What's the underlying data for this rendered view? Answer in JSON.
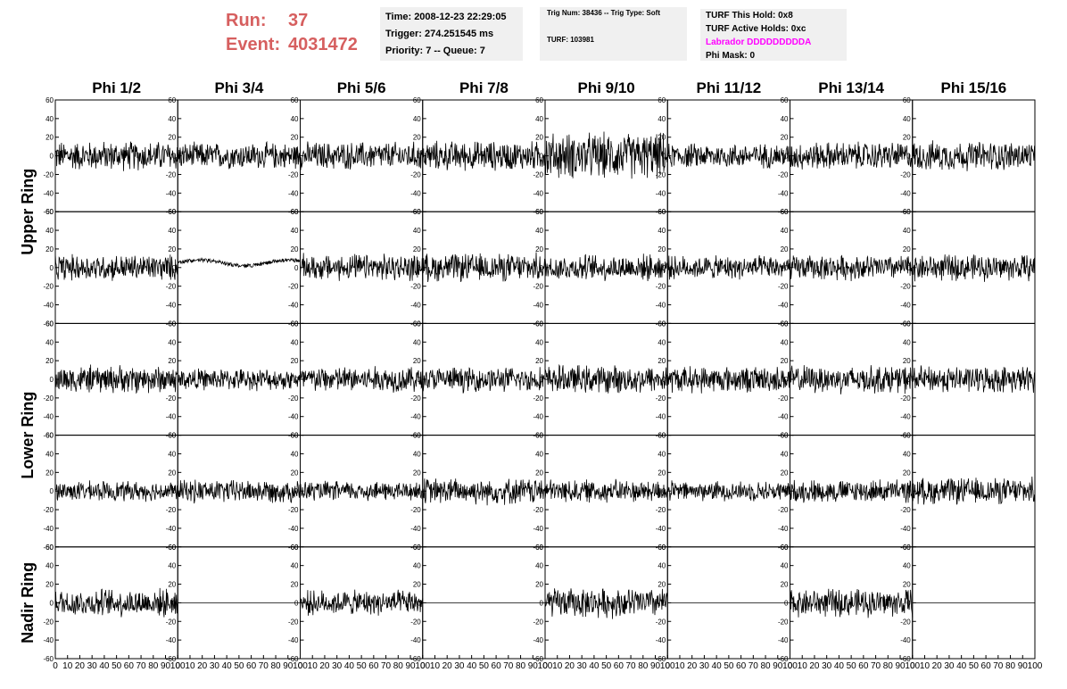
{
  "header": {
    "run_label": "Run:",
    "run_value": "37",
    "event_label": "Event:",
    "event_value": "4031472",
    "time": "Time: 2008-12-23 22:29:05",
    "trigger": "Trigger: 274.251545 ms",
    "priority": "Priority: 7 -- Queue: 7",
    "trig_num": "Trig Num: 38436 -- Trig Type: Soft",
    "turf": "TURF: 103981",
    "turf_hold": "TURF This Hold: 0x8",
    "turf_active": "TURF Active Holds: 0xc",
    "labrador": "Labrador DDDDDDDDDA",
    "phi_mask": "Phi Mask: 0"
  },
  "colors": {
    "run_text": "#d65f5f",
    "labrador": "#ff00ff",
    "info_box_bg": "#f0f0f0",
    "trace": "#000000"
  },
  "chart_data": {
    "type": "line",
    "columns": [
      "Phi 1/2",
      "Phi 3/4",
      "Phi 5/6",
      "Phi 7/8",
      "Phi 9/10",
      "Phi 11/12",
      "Phi 13/14",
      "Phi 15/16"
    ],
    "rings": [
      "Upper Ring",
      "Lower Ring",
      "Nadir Ring"
    ],
    "xlim": [
      0,
      100
    ],
    "ylim": [
      -60,
      60
    ],
    "x_ticks": [
      "0",
      "10",
      "20",
      "30",
      "40",
      "50",
      "60",
      "70",
      "80",
      "90",
      "100"
    ],
    "y_ticks": [
      "60",
      "40",
      "20",
      "0",
      "-20",
      "-40",
      "-60"
    ],
    "y_tick_values": [
      60,
      40,
      20,
      0,
      -20,
      -40,
      -60
    ],
    "panels": [
      {
        "row": 1,
        "amplitudes": [
          18,
          16,
          17,
          18,
          28,
          15,
          17,
          18
        ],
        "offsets": [
          0,
          0,
          0,
          0,
          0,
          0,
          0,
          0
        ]
      },
      {
        "row": 2,
        "amplitudes": [
          16,
          2,
          16,
          17,
          16,
          14,
          15,
          16
        ],
        "offsets": [
          0,
          5,
          0,
          0,
          0,
          0,
          0,
          0
        ]
      },
      {
        "row": 3,
        "amplitudes": [
          17,
          13,
          16,
          15,
          17,
          16,
          17,
          16
        ],
        "offsets": [
          0,
          0,
          0,
          0,
          0,
          0,
          0,
          0
        ]
      },
      {
        "row": 4,
        "amplitudes": [
          12,
          14,
          12,
          16,
          14,
          12,
          14,
          16
        ],
        "offsets": [
          0,
          0,
          0,
          0,
          0,
          0,
          0,
          0
        ]
      },
      {
        "row": 5,
        "amplitudes": [
          17,
          0,
          15,
          0,
          18,
          0,
          17,
          0
        ],
        "offsets": [
          0,
          0,
          0,
          0,
          0,
          0,
          0,
          0
        ]
      }
    ],
    "note_flat_panels": "Nadir Ring Phi 3/4, 7/8, 11/12, 15/16 show flat traces at 0"
  }
}
